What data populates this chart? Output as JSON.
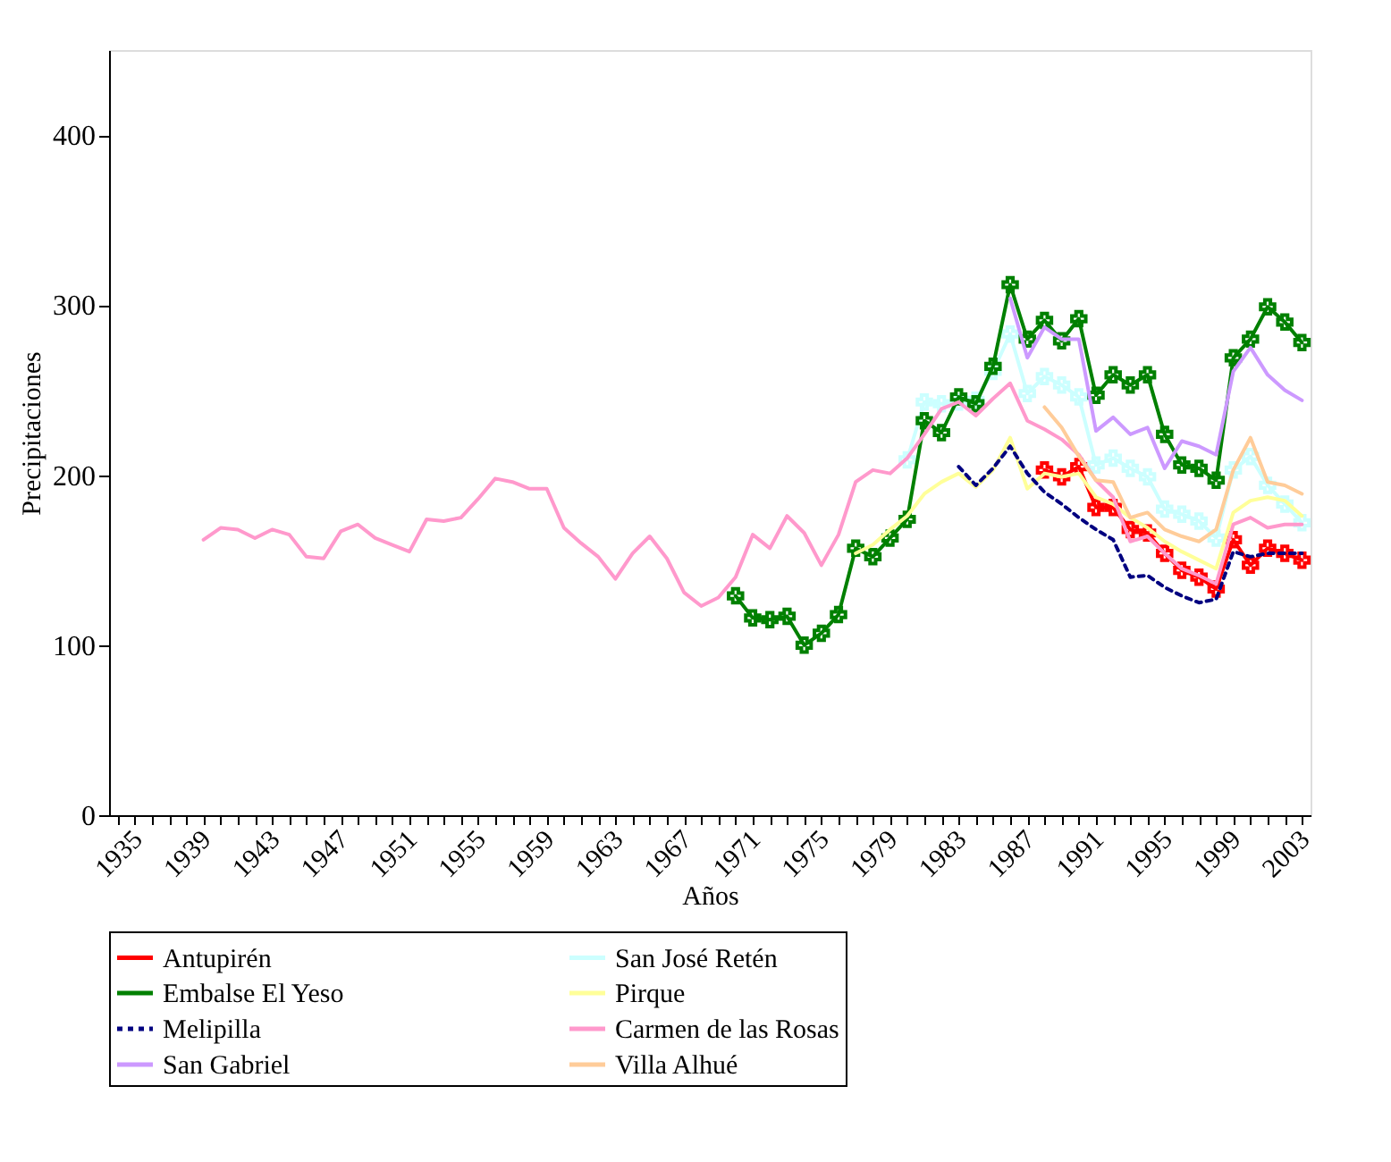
{
  "chart_data": {
    "type": "line",
    "xlabel": "Años",
    "ylabel": "Precipitaciones",
    "xlim": [
      1934.5,
      2004.5
    ],
    "ylim": [
      0,
      450
    ],
    "xticks": [
      1935,
      {
        "value": 1936,
        "label": null
      },
      {
        "value": 1937,
        "label": null
      },
      {
        "value": 1938,
        "label": null
      },
      1939,
      {
        "value": 1940,
        "label": null
      },
      {
        "value": 1941,
        "label": null
      },
      {
        "value": 1942,
        "label": null
      },
      1943,
      {
        "value": 1944,
        "label": null
      },
      {
        "value": 1945,
        "label": null
      },
      {
        "value": 1946,
        "label": null
      },
      1947,
      {
        "value": 1948,
        "label": null
      },
      {
        "value": 1949,
        "label": null
      },
      {
        "value": 1950,
        "label": null
      },
      1951,
      {
        "value": 1952,
        "label": null
      },
      {
        "value": 1953,
        "label": null
      },
      {
        "value": 1954,
        "label": null
      },
      1955,
      {
        "value": 1956,
        "label": null
      },
      {
        "value": 1957,
        "label": null
      },
      {
        "value": 1958,
        "label": null
      },
      1959,
      {
        "value": 1960,
        "label": null
      },
      {
        "value": 1961,
        "label": null
      },
      {
        "value": 1962,
        "label": null
      },
      1963,
      {
        "value": 1964,
        "label": null
      },
      {
        "value": 1965,
        "label": null
      },
      {
        "value": 1966,
        "label": null
      },
      1967,
      {
        "value": 1968,
        "label": null
      },
      {
        "value": 1969,
        "label": null
      },
      {
        "value": 1970,
        "label": null
      },
      1971,
      {
        "value": 1972,
        "label": null
      },
      {
        "value": 1973,
        "label": null
      },
      {
        "value": 1974,
        "label": null
      },
      1975,
      {
        "value": 1976,
        "label": null
      },
      {
        "value": 1977,
        "label": null
      },
      {
        "value": 1978,
        "label": null
      },
      1979,
      {
        "value": 1980,
        "label": null
      },
      {
        "value": 1981,
        "label": null
      },
      {
        "value": 1982,
        "label": null
      },
      1983,
      {
        "value": 1984,
        "label": null
      },
      {
        "value": 1985,
        "label": null
      },
      {
        "value": 1986,
        "label": null
      },
      1987,
      {
        "value": 1988,
        "label": null
      },
      {
        "value": 1989,
        "label": null
      },
      {
        "value": 1990,
        "label": null
      },
      1991,
      {
        "value": 1992,
        "label": null
      },
      {
        "value": 1993,
        "label": null
      },
      {
        "value": 1994,
        "label": null
      },
      1995,
      {
        "value": 1996,
        "label": null
      },
      {
        "value": 1997,
        "label": null
      },
      {
        "value": 1998,
        "label": null
      },
      1999,
      {
        "value": 2000,
        "label": null
      },
      {
        "value": 2001,
        "label": null
      },
      {
        "value": 2002,
        "label": null
      },
      2003,
      {
        "value": 2004,
        "label": null
      }
    ],
    "yticks": [
      0,
      100,
      200,
      300,
      400
    ],
    "grid": false,
    "legend": "bottom",
    "series": [
      {
        "name": "Antupirén",
        "color": "#ff0000",
        "marker": "cross",
        "x": [
          1989,
          1990,
          1991,
          1992,
          1993,
          1994,
          1995,
          1996,
          1997,
          1998,
          1999,
          2000,
          2001,
          2002,
          2003,
          2004
        ],
        "values": [
          203,
          199,
          205,
          181,
          181,
          168,
          166,
          154,
          144,
          140,
          133,
          162,
          147,
          157,
          154,
          150
        ]
      },
      {
        "name": "San José Retén",
        "color": "#ccffff",
        "marker": "cross",
        "x": [
          1981,
          1982,
          1983,
          1984,
          1985,
          1986,
          1987,
          1988,
          1989,
          1990,
          1991,
          1992,
          1993,
          1994,
          1995,
          1996,
          1997,
          1998,
          1999,
          2000,
          2001,
          2002,
          2003,
          2004
        ],
        "values": [
          209,
          243,
          242,
          243,
          244,
          261,
          283,
          248,
          258,
          253,
          246,
          206,
          210,
          204,
          199,
          180,
          177,
          173,
          163,
          203,
          211,
          194,
          183,
          172
        ]
      },
      {
        "name": "Embalse El Yeso",
        "color": "#008000",
        "marker": "cross",
        "x": [
          1971,
          1972,
          1973,
          1974,
          1975,
          1976,
          1977,
          1978,
          1979,
          1980,
          1981,
          1982,
          1983,
          1984,
          1985,
          1986,
          1987,
          1988,
          1989,
          1990,
          1991,
          1992,
          1993,
          1994,
          1995,
          1996,
          1997,
          1998,
          1999,
          2000,
          2001,
          2002,
          2003,
          2004
        ],
        "values": [
          129,
          116,
          115,
          117,
          100,
          107,
          118,
          157,
          152,
          163,
          174,
          232,
          225,
          246,
          242,
          264,
          312,
          280,
          291,
          279,
          292,
          247,
          259,
          253,
          259,
          224,
          206,
          204,
          197,
          269,
          280,
          299,
          290,
          278
        ]
      },
      {
        "name": "Pirque",
        "color": "#ffff99",
        "x": [
          1978,
          1979,
          1980,
          1981,
          1982,
          1983,
          1984,
          1985,
          1986,
          1987,
          1988,
          1989,
          1990,
          1991,
          1992,
          1993,
          1994,
          1995,
          1996,
          1997,
          1998,
          1999,
          2000,
          2001,
          2002,
          2003,
          2004
        ],
        "values": [
          154,
          159,
          168,
          176,
          189,
          196,
          201,
          193,
          203,
          222,
          192,
          201,
          199,
          201,
          187,
          183,
          175,
          169,
          161,
          155,
          150,
          145,
          178,
          185,
          187,
          185,
          176
        ]
      },
      {
        "name": "Melipilla",
        "color": "#000080",
        "line_style": "dotted",
        "x": [
          1984,
          1985,
          1986,
          1987,
          1988,
          1989,
          1990,
          1991,
          1992,
          1993,
          1994,
          1995,
          1996,
          1997,
          1998,
          1999,
          2000,
          2001,
          2002,
          2003,
          2004
        ],
        "values": [
          205,
          194,
          204,
          217,
          201,
          190,
          183,
          175,
          168,
          162,
          140,
          141,
          134,
          129,
          125,
          127,
          155,
          152,
          154,
          154,
          154
        ]
      },
      {
        "name": "Carmen de las Rosas",
        "color": "#ff99cc",
        "x": [
          1940,
          1941,
          1942,
          1943,
          1944,
          1945,
          1946,
          1947,
          1948,
          1949,
          1950,
          1951,
          1952,
          1953,
          1954,
          1955,
          1956,
          1957,
          1958,
          1959,
          1960,
          1961,
          1962,
          1963,
          1964,
          1965,
          1966,
          1967,
          1968,
          1969,
          1970,
          1971,
          1972,
          1973,
          1974,
          1975,
          1976,
          1977,
          1978,
          1979,
          1980,
          1981,
          1982,
          1983,
          1984,
          1985,
          1986,
          1987,
          1988,
          1989,
          1990,
          1991,
          1992,
          1993,
          1994,
          1995,
          1996,
          1997,
          1998,
          1999,
          2000,
          2001,
          2002,
          2003,
          2004
        ],
        "values": [
          162,
          169,
          168,
          163,
          168,
          165,
          152,
          151,
          167,
          171,
          163,
          159,
          155,
          174,
          173,
          175,
          186,
          198,
          196,
          192,
          192,
          169,
          160,
          152,
          139,
          154,
          164,
          151,
          131,
          123,
          128,
          140,
          165,
          157,
          176,
          166,
          147,
          165,
          196,
          203,
          201,
          210,
          224,
          239,
          243,
          235,
          245,
          254,
          232,
          227,
          221,
          212,
          197,
          187,
          161,
          164,
          154,
          145,
          141,
          136,
          171,
          175,
          169,
          171,
          171
        ]
      },
      {
        "name": "San Gabriel",
        "color": "#cc99ff",
        "x": [
          1987,
          1988,
          1989,
          1990,
          1991,
          1992,
          1993,
          1994,
          1995,
          1996,
          1997,
          1998,
          1999,
          2000,
          2001,
          2002,
          2003,
          2004
        ],
        "values": [
          304,
          269,
          287,
          280,
          280,
          226,
          234,
          224,
          228,
          204,
          220,
          217,
          212,
          261,
          275,
          259,
          250,
          244
        ]
      },
      {
        "name": "Villa Alhué",
        "color": "#ffcc99",
        "x": [
          1989,
          1990,
          1991,
          1992,
          1993,
          1994,
          1995,
          1996,
          1997,
          1998,
          1999,
          2000,
          2001,
          2002,
          2003,
          2004
        ],
        "values": [
          240,
          228,
          211,
          197,
          196,
          175,
          178,
          168,
          164,
          161,
          168,
          203,
          222,
          196,
          194,
          189
        ]
      }
    ]
  }
}
